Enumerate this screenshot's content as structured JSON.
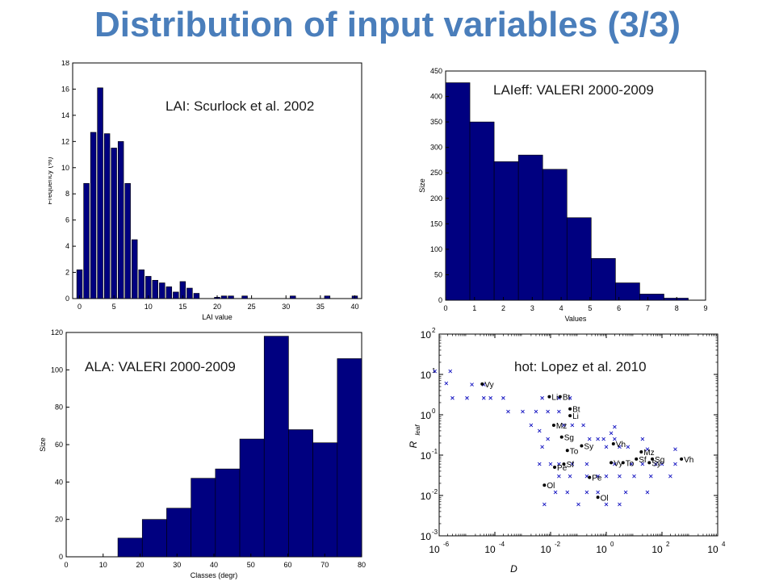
{
  "page": {
    "title": "Distribution of input variables (3/3)"
  },
  "chart_data": [
    {
      "type": "bar",
      "annotation": "LAI: Scurlock et al. 2002",
      "xlabel": "LAI value",
      "ylabel": "Frequency (%)",
      "xlim": [
        -1,
        41
      ],
      "ylim": [
        0,
        18
      ],
      "xticks": [
        0,
        5,
        10,
        15,
        20,
        25,
        30,
        35,
        40
      ],
      "yticks": [
        0,
        2,
        4,
        6,
        8,
        10,
        12,
        14,
        16,
        18
      ],
      "bin_width": 0.8,
      "x": [
        0,
        1,
        2,
        3,
        4,
        5,
        6,
        7,
        8,
        9,
        10,
        11,
        12,
        13,
        14,
        15,
        16,
        17,
        18,
        19,
        20,
        21,
        22,
        23,
        24,
        25,
        26,
        27,
        28,
        29,
        30,
        31,
        32,
        33,
        34,
        35,
        36,
        37,
        38,
        39,
        40
      ],
      "values": [
        2.2,
        8.8,
        12.7,
        16.1,
        12.6,
        11.5,
        12.0,
        8.8,
        4.5,
        2.2,
        1.7,
        1.4,
        1.2,
        0.9,
        0.5,
        1.3,
        0.8,
        0.4,
        0.0,
        0.0,
        0.1,
        0.2,
        0.2,
        0.0,
        0.2,
        0.0,
        0.0,
        0.0,
        0.0,
        0.0,
        0.0,
        0.2,
        0.0,
        0.0,
        0.0,
        0.0,
        0.2,
        0.0,
        0.0,
        0.0,
        0.2
      ],
      "color": "#000080"
    },
    {
      "type": "bar",
      "annotation": "LAIeff: VALERI 2000-2009",
      "xlabel": "Values",
      "ylabel": "Size",
      "xlim": [
        0,
        9
      ],
      "ylim": [
        0,
        450
      ],
      "xticks": [
        0,
        1,
        2,
        3,
        4,
        5,
        6,
        7,
        8,
        9
      ],
      "yticks": [
        0,
        50,
        100,
        150,
        200,
        250,
        300,
        350,
        400,
        450
      ],
      "bin_edges": [
        0,
        0.84,
        1.68,
        2.52,
        3.36,
        4.2,
        5.04,
        5.88,
        6.72,
        7.56,
        8.4
      ],
      "values": [
        427,
        350,
        272,
        285,
        257,
        162,
        82,
        34,
        12,
        4
      ],
      "color": "#000080"
    },
    {
      "type": "bar",
      "annotation": "ALA: VALERI 2000-2009",
      "xlabel": "Classes (degr)",
      "ylabel": "Size",
      "xlim": [
        0,
        80
      ],
      "ylim": [
        0,
        120
      ],
      "xticks": [
        0,
        10,
        20,
        30,
        40,
        50,
        60,
        70,
        80
      ],
      "yticks": [
        0,
        20,
        40,
        60,
        80,
        100,
        120
      ],
      "bin_edges": [
        14,
        20.6,
        27.2,
        33.8,
        40.4,
        47,
        53.6,
        60.2,
        66.8,
        73.4,
        80
      ],
      "values": [
        10,
        20,
        26,
        42,
        47,
        63,
        118,
        68,
        61,
        106
      ],
      "color": "#000080"
    },
    {
      "type": "scatter",
      "annotation": "hot: Lopez et al. 2010",
      "xlabel": "D",
      "ylabel": "R",
      "ylabel_sub": "leaf",
      "xscale": "log",
      "yscale": "log",
      "xlim_exp": [
        -6,
        4
      ],
      "ylim_exp": [
        -3,
        2
      ],
      "xtick_exps": [
        -6,
        -4,
        -2,
        0,
        2,
        4
      ],
      "ytick_exps": [
        -3,
        -2,
        -1,
        0,
        1,
        2
      ],
      "tick_base": "10",
      "cross_points": [
        [
          7e-07,
          12
        ],
        [
          2.5e-06,
          12
        ],
        [
          1.8e-06,
          6
        ],
        [
          3e-06,
          2.6
        ],
        [
          1e-05,
          2.6
        ],
        [
          1.5e-05,
          5.6
        ],
        [
          4e-05,
          5.6
        ],
        [
          7e-05,
          2.6
        ],
        [
          4e-05,
          2.6
        ],
        [
          0.0002,
          2.6
        ],
        [
          0.0003,
          1.2
        ],
        [
          0.001,
          1.2
        ],
        [
          0.003,
          1.2
        ],
        [
          0.005,
          2.6
        ],
        [
          0.008,
          1.2
        ],
        [
          0.02,
          2.6
        ],
        [
          0.02,
          1.2
        ],
        [
          0.05,
          2.6
        ],
        [
          0.002,
          0.55
        ],
        [
          0.004,
          0.4
        ],
        [
          0.008,
          0.25
        ],
        [
          0.004,
          0.06
        ],
        [
          0.01,
          0.06
        ],
        [
          0.02,
          0.06
        ],
        [
          0.005,
          0.16
        ],
        [
          0.03,
          0.55
        ],
        [
          0.06,
          0.55
        ],
        [
          0.15,
          0.55
        ],
        [
          0.25,
          0.25
        ],
        [
          0.5,
          0.25
        ],
        [
          0.8,
          0.25
        ],
        [
          2,
          0.25
        ],
        [
          1,
          0.16
        ],
        [
          3,
          0.16
        ],
        [
          6,
          0.16
        ],
        [
          2,
          0.06
        ],
        [
          8,
          0.06
        ],
        [
          20,
          0.06
        ],
        [
          60,
          0.06
        ],
        [
          100,
          0.06
        ],
        [
          300,
          0.06
        ],
        [
          0.2,
          0.06
        ],
        [
          0.06,
          0.06
        ],
        [
          0.02,
          0.03
        ],
        [
          0.05,
          0.03
        ],
        [
          0.2,
          0.03
        ],
        [
          0.5,
          0.03
        ],
        [
          1,
          0.03
        ],
        [
          3,
          0.03
        ],
        [
          10,
          0.03
        ],
        [
          40,
          0.03
        ],
        [
          200,
          0.03
        ],
        [
          0.2,
          0.012
        ],
        [
          0.5,
          0.012
        ],
        [
          1,
          0.006
        ],
        [
          3,
          0.006
        ],
        [
          0.1,
          0.006
        ],
        [
          0.04,
          0.012
        ],
        [
          0.015,
          0.012
        ],
        [
          0.006,
          0.006
        ],
        [
          5,
          0.012
        ],
        [
          30,
          0.012
        ],
        [
          2,
          0.5
        ],
        [
          1.5,
          0.35
        ],
        [
          30,
          0.14
        ],
        [
          300,
          0.14
        ],
        [
          20,
          0.25
        ]
      ],
      "labeled_points": [
        {
          "label": "Vy",
          "x": 3.5e-05,
          "y": 5.8
        },
        {
          "label": "Li",
          "x": 0.009,
          "y": 2.8
        },
        {
          "label": "Bt",
          "x": 0.022,
          "y": 2.8
        },
        {
          "label": "Bt",
          "x": 0.05,
          "y": 1.4
        },
        {
          "label": "Li",
          "x": 0.05,
          "y": 0.95
        },
        {
          "label": "Mz",
          "x": 0.013,
          "y": 0.55
        },
        {
          "label": "Sg",
          "x": 0.025,
          "y": 0.28
        },
        {
          "label": "Sy",
          "x": 0.13,
          "y": 0.17
        },
        {
          "label": "To",
          "x": 0.04,
          "y": 0.13
        },
        {
          "label": "Vh",
          "x": 1.8,
          "y": 0.19
        },
        {
          "label": "Mz",
          "x": 18,
          "y": 0.12
        },
        {
          "label": "Sf",
          "x": 12,
          "y": 0.08
        },
        {
          "label": "Sg",
          "x": 45,
          "y": 0.08
        },
        {
          "label": "Sf",
          "x": 0.03,
          "y": 0.06
        },
        {
          "label": "Pe",
          "x": 0.014,
          "y": 0.05
        },
        {
          "label": "Vy",
          "x": 1.5,
          "y": 0.065
        },
        {
          "label": "To",
          "x": 4,
          "y": 0.065
        },
        {
          "label": "Sy",
          "x": 35,
          "y": 0.065
        },
        {
          "label": "Vh",
          "x": 500,
          "y": 0.08
        },
        {
          "label": "Pe",
          "x": 0.25,
          "y": 0.028
        },
        {
          "label": "Ol",
          "x": 0.006,
          "y": 0.018
        },
        {
          "label": "Ol",
          "x": 0.5,
          "y": 0.009
        }
      ],
      "cross_color": "#1010c0",
      "dot_color": "#000000"
    }
  ]
}
